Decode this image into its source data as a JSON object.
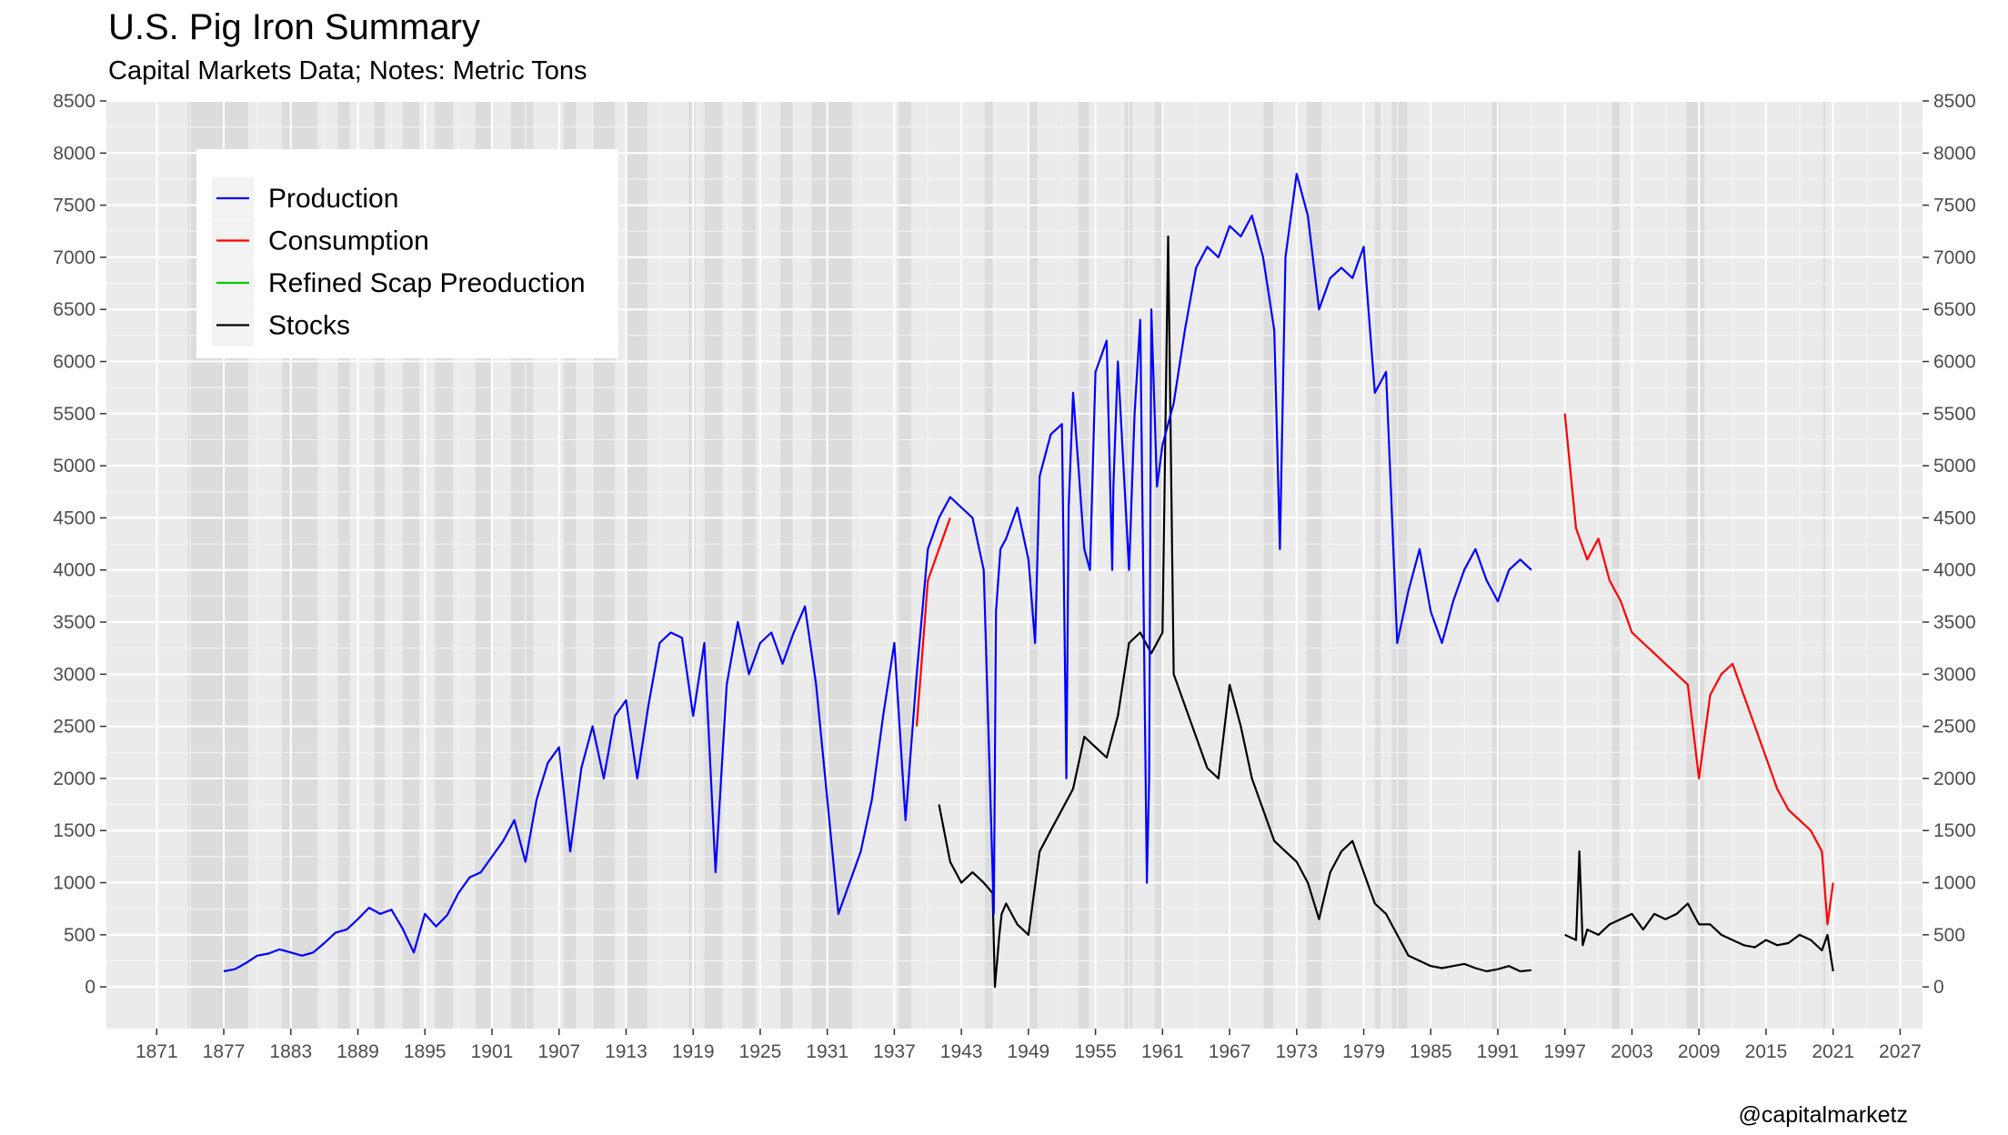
{
  "chart_data": {
    "type": "line",
    "title": "U.S. Pig Iron Summary",
    "subtitle": "Capital Markets Data; Notes: Metric Tons",
    "caption": "@capitalmarketz",
    "xlabel": "",
    "ylabel": "",
    "xlim": [
      1866.5,
      2029
    ],
    "ylim": [
      -400,
      8500
    ],
    "x_ticks": [
      1871,
      1877,
      1883,
      1889,
      1895,
      1901,
      1907,
      1913,
      1919,
      1925,
      1931,
      1937,
      1943,
      1949,
      1955,
      1961,
      1967,
      1973,
      1979,
      1985,
      1991,
      1997,
      2003,
      2009,
      2015,
      2021,
      2027
    ],
    "y_ticks": [
      0,
      500,
      1000,
      1500,
      2000,
      2500,
      3000,
      3500,
      4000,
      4500,
      5000,
      5500,
      6000,
      6500,
      7000,
      7500,
      8000,
      8500
    ],
    "grid": true,
    "legend_position": "top-left",
    "recessions": [
      [
        1873.8,
        1879.2
      ],
      [
        1882.2,
        1885.4
      ],
      [
        1887.2,
        1888.3
      ],
      [
        1890.5,
        1891.4
      ],
      [
        1893.0,
        1894.5
      ],
      [
        1895.9,
        1897.5
      ],
      [
        1899.5,
        1900.9
      ],
      [
        1902.7,
        1904.7
      ],
      [
        1907.4,
        1908.5
      ],
      [
        1910.0,
        1912.0
      ],
      [
        1913.0,
        1914.9
      ],
      [
        1918.6,
        1919.2
      ],
      [
        1920.0,
        1921.6
      ],
      [
        1923.4,
        1924.6
      ],
      [
        1926.8,
        1927.9
      ],
      [
        1929.6,
        1933.2
      ],
      [
        1937.4,
        1938.5
      ],
      [
        1945.1,
        1945.8
      ],
      [
        1948.9,
        1949.8
      ],
      [
        1953.5,
        1954.4
      ],
      [
        1957.6,
        1958.3
      ],
      [
        1960.3,
        1961.1
      ],
      [
        1969.9,
        1970.9
      ],
      [
        1973.9,
        1975.2
      ],
      [
        1980.0,
        1980.5
      ],
      [
        1981.5,
        1982.9
      ],
      [
        1990.5,
        1991.2
      ],
      [
        2001.2,
        2001.9
      ],
      [
        2007.9,
        2009.5
      ],
      [
        2020.1,
        2020.3
      ]
    ],
    "series": [
      {
        "name": "Production",
        "color": "#0000ff",
        "x": [
          1877.0,
          1878.0,
          1879.0,
          1880.0,
          1881.0,
          1882.0,
          1883.0,
          1884.0,
          1885.0,
          1886.0,
          1887.0,
          1888.0,
          1889.0,
          1890.0,
          1891.0,
          1892.0,
          1893.0,
          1894.0,
          1895.0,
          1896.0,
          1897.0,
          1898.0,
          1899.0,
          1900.0,
          1901.0,
          1902.0,
          1903.0,
          1904.0,
          1905.0,
          1906.0,
          1907.0,
          1908.0,
          1909.0,
          1910.0,
          1911.0,
          1912.0,
          1913.0,
          1914.0,
          1915.0,
          1916.0,
          1917.0,
          1918.0,
          1919.0,
          1920.0,
          1921.0,
          1922.0,
          1923.0,
          1924.0,
          1925.0,
          1926.0,
          1927.0,
          1928.0,
          1929.0,
          1930.0,
          1931.0,
          1932.0,
          1933.0,
          1934.0,
          1935.0,
          1936.0,
          1937.0,
          1938.0,
          1939.0,
          1940.0,
          1941.0,
          1942.0,
          1943.0,
          1944.0,
          1945.0,
          1945.9,
          1946.1,
          1946.5,
          1947.0,
          1948.0,
          1949.0,
          1949.6,
          1950.0,
          1951.0,
          1952.0,
          1952.4,
          1952.6,
          1953.0,
          1954.0,
          1954.5,
          1955.0,
          1956.0,
          1956.5,
          1956.6,
          1957.0,
          1958.0,
          1958.5,
          1959.0,
          1959.6,
          1959.8,
          1960.0,
          1960.5,
          1961.0,
          1962.0,
          1963.0,
          1964.0,
          1965.0,
          1966.0,
          1967.0,
          1968.0,
          1969.0,
          1970.0,
          1971.0,
          1971.5,
          1972.0,
          1973.0,
          1974.0,
          1975.0,
          1976.0,
          1977.0,
          1978.0,
          1979.0,
          1980.0,
          1981.0,
          1982.0,
          1983.0,
          1984.0,
          1985.0,
          1986.0,
          1987.0,
          1988.0,
          1989.0,
          1990.0,
          1991.0,
          1992.0,
          1993.0,
          1994.0
        ],
        "values": [
          150,
          170,
          230,
          300,
          320,
          360,
          330,
          300,
          330,
          420,
          520,
          550,
          650,
          760,
          700,
          740,
          560,
          330,
          700,
          580,
          690,
          900,
          1050,
          1100,
          1250,
          1400,
          1600,
          1200,
          1800,
          2150,
          2300,
          1300,
          2100,
          2500,
          2000,
          2600,
          2750,
          2000,
          2700,
          3300,
          3400,
          3350,
          2600,
          3300,
          1100,
          2900,
          3500,
          3000,
          3300,
          3400,
          3100,
          3400,
          3650,
          2900,
          1800,
          700,
          1000,
          1300,
          1800,
          2600,
          3300,
          1600,
          3000,
          4200,
          4500,
          4700,
          4600,
          4500,
          4000,
          700,
          3600,
          4200,
          4300,
          4600,
          4100,
          3300,
          4900,
          5300,
          5400,
          2000,
          4600,
          5700,
          4200,
          4000,
          5900,
          6200,
          4000,
          4800,
          6000,
          4000,
          5500,
          6400,
          1000,
          2000,
          6500,
          4800,
          5200,
          5600,
          6300,
          6900,
          7100,
          7000,
          7300,
          7200,
          7400,
          7000,
          6300,
          4200,
          7000,
          7800,
          7400,
          6500,
          6800,
          6900,
          6800,
          7100,
          5700,
          5900,
          3300,
          3800,
          4200,
          3600,
          3300,
          3700,
          4000,
          4200,
          3900,
          3700,
          4000,
          4100,
          4000
        ]
      },
      {
        "name": "Consumption",
        "color": "#ff0000",
        "x": [
          1939.0,
          1940.0,
          1941.0,
          1942.0,
          1997.0,
          1998.0,
          1999.0,
          2000.0,
          2001.0,
          2002.0,
          2003.0,
          2004.0,
          2005.0,
          2006.0,
          2007.0,
          2008.0,
          2009.0,
          2010.0,
          2011.0,
          2012.0,
          2013.0,
          2014.0,
          2015.0,
          2016.0,
          2017.0,
          2018.0,
          2019.0,
          2020.0,
          2020.5,
          2021.0
        ],
        "values": [
          2500,
          3900,
          4200,
          4500,
          5500,
          4400,
          4100,
          4300,
          3900,
          3700,
          3400,
          3300,
          3200,
          3100,
          3000,
          2900,
          2000,
          2800,
          3000,
          3100,
          2800,
          2500,
          2200,
          1900,
          1700,
          1600,
          1500,
          1300,
          600,
          1000
        ]
      },
      {
        "name": "Refined Scap Preoduction",
        "color": "#00cc00",
        "x": [],
        "values": []
      },
      {
        "name": "Stocks",
        "color": "#000000",
        "x": [
          1941.0,
          1942.0,
          1943.0,
          1944.0,
          1945.0,
          1945.8,
          1946.0,
          1946.4,
          1946.6,
          1947.0,
          1948.0,
          1949.0,
          1950.0,
          1951.0,
          1952.0,
          1953.0,
          1954.0,
          1955.0,
          1956.0,
          1957.0,
          1958.0,
          1959.0,
          1960.0,
          1961.0,
          1961.5,
          1962.0,
          1963.0,
          1964.0,
          1965.0,
          1966.0,
          1967.0,
          1968.0,
          1969.0,
          1970.0,
          1971.0,
          1972.0,
          1973.0,
          1974.0,
          1975.0,
          1976.0,
          1977.0,
          1978.0,
          1979.0,
          1980.0,
          1981.0,
          1982.0,
          1983.0,
          1984.0,
          1985.0,
          1986.0,
          1987.0,
          1988.0,
          1989.0,
          1990.0,
          1991.0,
          1992.0,
          1993.0,
          1994.0,
          1997.0,
          1998.0,
          1998.3,
          1998.6,
          1999.0,
          2000.0,
          2001.0,
          2002.0,
          2003.0,
          2004.0,
          2005.0,
          2006.0,
          2007.0,
          2008.0,
          2009.0,
          2010.0,
          2011.0,
          2012.0,
          2013.0,
          2014.0,
          2015.0,
          2016.0,
          2017.0,
          2018.0,
          2019.0,
          2020.0,
          2020.5,
          2021.0
        ],
        "values": [
          1750,
          1200,
          1000,
          1100,
          1000,
          900,
          0,
          500,
          700,
          800,
          600,
          500,
          1300,
          1500,
          1700,
          1900,
          2400,
          2300,
          2200,
          2600,
          3300,
          3400,
          3200,
          3400,
          7200,
          3000,
          2700,
          2400,
          2100,
          2000,
          2900,
          2500,
          2000,
          1700,
          1400,
          1300,
          1200,
          1000,
          650,
          1100,
          1300,
          1400,
          1100,
          800,
          700,
          500,
          300,
          250,
          200,
          180,
          200,
          220,
          180,
          150,
          170,
          200,
          150,
          160,
          500,
          450,
          1300,
          400,
          550,
          500,
          600,
          650,
          700,
          550,
          700,
          650,
          700,
          800,
          600,
          600,
          500,
          450,
          400,
          380,
          450,
          400,
          420,
          500,
          450,
          350,
          500,
          150
        ]
      }
    ]
  }
}
